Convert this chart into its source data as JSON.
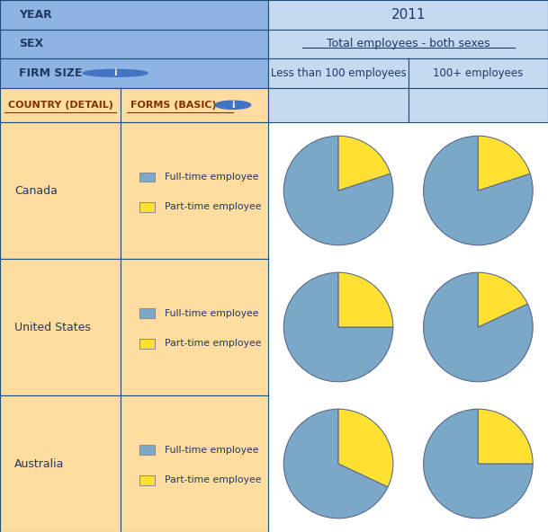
{
  "title_year": "2011",
  "title_sex": "Total employees - both sexes",
  "col_headers": [
    "Less than 100 employees",
    "100+ employees"
  ],
  "row_labels": [
    "Canada",
    "United States",
    "Australia"
  ],
  "header_labels": [
    "YEAR",
    "SEX",
    "FIRM SIZE",
    "COUNTRY (DETAIL)",
    "FORMS (BASIC)"
  ],
  "legend_labels": [
    "Full-time employee",
    "Part-time employee"
  ],
  "pie_colors": [
    "#7BA7C9",
    "#FFE033"
  ],
  "pie_data": [
    [
      [
        80,
        20
      ],
      [
        80,
        20
      ]
    ],
    [
      [
        75,
        25
      ],
      [
        82,
        18
      ]
    ],
    [
      [
        68,
        32
      ],
      [
        75,
        25
      ]
    ]
  ],
  "header_bg_light_blue": "#C5D9F1",
  "header_bg_medium_blue": "#8DB4E2",
  "orange_bg": "#FFDCA0",
  "cell_border_color": "#1F4E79",
  "white_bg": "#FFFFFF",
  "text_color_dark": "#1F3864",
  "text_color_orange": "#7F3300",
  "info_icon_color": "#4472C4"
}
